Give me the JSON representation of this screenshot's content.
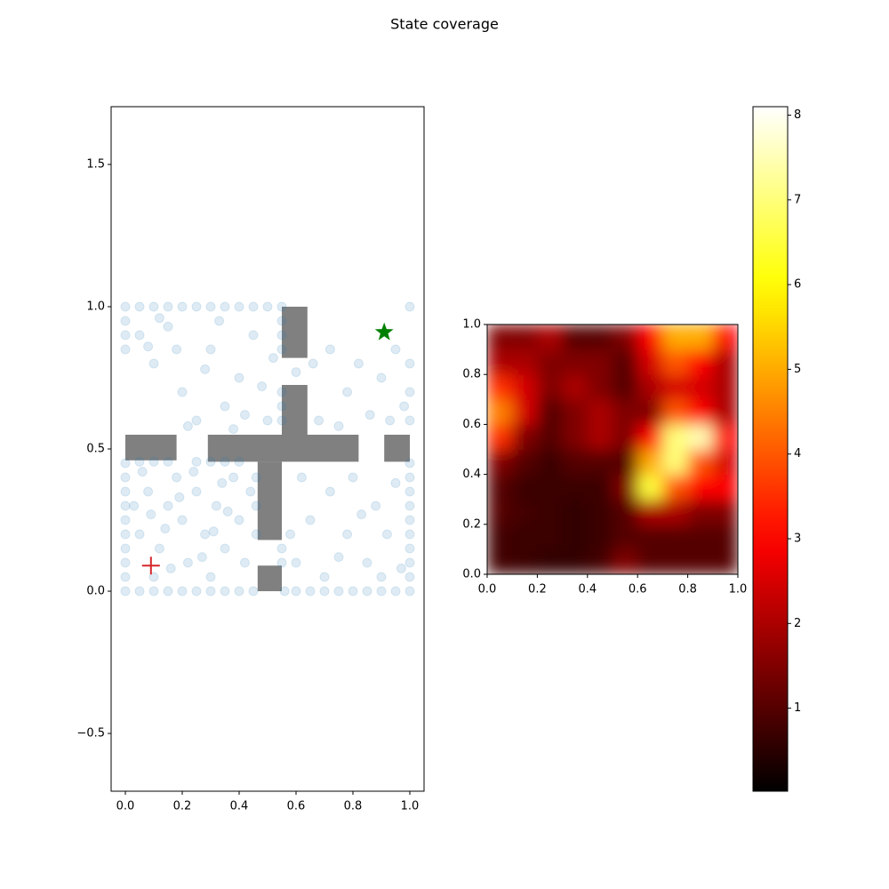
{
  "title": "State coverage",
  "chart_data": [
    {
      "type": "scatter",
      "xlim": [
        -0.05,
        1.05
      ],
      "ylim": [
        -0.703,
        1.703
      ],
      "xticks": [
        {
          "value": 0,
          "label": "0.0"
        },
        0.2,
        0.4,
        0.6,
        0.8,
        {
          "value": 1,
          "label": "1.0"
        }
      ],
      "yticks": [
        {
          "value": -0.5,
          "label": "−0.5"
        },
        {
          "value": 0,
          "label": "0.0"
        },
        0.5,
        {
          "value": 1,
          "label": "1.0"
        },
        1.5
      ],
      "color": "#1f77b4",
      "alpha": 0.15,
      "wall_color": "#808080",
      "walls": [
        [
          0.55,
          0.82,
          0.64,
          1.0
        ],
        [
          0.55,
          0.55,
          0.64,
          0.725
        ],
        [
          0.29,
          0.455,
          0.82,
          0.55
        ],
        [
          0.465,
          0.18,
          0.55,
          0.455
        ],
        [
          0.0,
          0.46,
          0.18,
          0.55
        ],
        [
          0.91,
          0.455,
          1.0,
          0.55
        ],
        [
          0.465,
          0.0,
          0.55,
          0.09
        ]
      ],
      "start": [
        0.09,
        0.09
      ],
      "start_color": "#d62728",
      "goal": [
        0.91,
        0.91
      ],
      "goal_color": "#008000",
      "x": [
        0,
        0.05,
        0.1,
        0.15,
        0.2,
        0.25,
        0.3,
        0.35,
        0.4,
        0.45,
        0.56,
        0.6,
        0.65,
        0.7,
        0.75,
        0.8,
        0.85,
        0.9,
        0.95,
        1,
        0,
        0,
        0,
        0,
        0,
        0,
        0,
        0,
        0,
        0,
        0,
        0,
        0,
        0.05,
        0.1,
        0.15,
        0.2,
        0.25,
        0.3,
        0.35,
        0.4,
        0.45,
        0.5,
        0.55,
        1,
        1,
        1,
        1,
        1,
        1,
        1,
        1,
        1,
        1,
        1,
        1,
        1,
        0.55,
        0.55,
        0.55,
        0.55,
        0.55,
        0.55,
        0.55,
        0.55,
        0.05,
        0.1,
        0.15,
        0.25,
        0.3,
        0.35,
        0.4,
        0.46,
        0.46,
        0.46,
        0.05,
        0.08,
        0.12,
        0.15,
        0.18,
        0.2,
        0.22,
        0.25,
        0.28,
        0.3,
        0.32,
        0.35,
        0.38,
        0.4,
        0.42,
        0.1,
        0.06,
        0.14,
        0.24,
        0.34,
        0.16,
        0.27,
        0.36,
        0.44,
        0.03,
        0.19,
        0.09,
        0.31,
        0.6,
        0.65,
        0.7,
        0.72,
        0.78,
        0.8,
        0.85,
        0.88,
        0.92,
        0.95,
        0.97,
        0.62,
        0.9,
        0.83,
        0.58,
        0.75,
        0.05,
        0.1,
        0.15,
        0.2,
        0.25,
        0.3,
        0.35,
        0.4,
        0.45,
        0.5,
        0.22,
        0.38,
        0.48,
        0.12,
        0.28,
        0.42,
        0.33,
        0.18,
        0.52,
        0.08,
        0.6,
        0.68,
        0.72,
        0.78,
        0.82,
        0.86,
        0.9,
        0.95,
        0.98,
        0.75,
        0.93,
        0.66
      ],
      "y": [
        0,
        0,
        0,
        0,
        0,
        0,
        0,
        0,
        0,
        0,
        0,
        0,
        0,
        0,
        0,
        0,
        0,
        0,
        0,
        0,
        0.05,
        0.1,
        0.15,
        0.2,
        0.25,
        0.3,
        0.35,
        0.4,
        0.45,
        0.85,
        0.9,
        0.95,
        1,
        1,
        1,
        1,
        1,
        1,
        1,
        1,
        1,
        1,
        1,
        1,
        0.05,
        0.1,
        0.15,
        0.2,
        0.25,
        0.3,
        0.35,
        0.4,
        0.45,
        0.6,
        0.7,
        0.8,
        1,
        0.85,
        0.9,
        0.95,
        0.6,
        0.65,
        0.7,
        0.1,
        0.15,
        0.455,
        0.455,
        0.455,
        0.455,
        0.455,
        0.455,
        0.455,
        0.2,
        0.3,
        0.4,
        0.2,
        0.35,
        0.15,
        0.3,
        0.4,
        0.25,
        0.1,
        0.35,
        0.2,
        0.05,
        0.3,
        0.15,
        0.4,
        0.25,
        0.1,
        0.05,
        0.42,
        0.22,
        0.42,
        0.38,
        0.08,
        0.12,
        0.28,
        0.35,
        0.3,
        0.33,
        0.27,
        0.21,
        0.1,
        0.25,
        0.05,
        0.35,
        0.2,
        0.4,
        0.1,
        0.3,
        0.2,
        0.38,
        0.08,
        0.4,
        0.05,
        0.27,
        0.2,
        0.12,
        0.9,
        0.8,
        0.93,
        0.7,
        0.6,
        0.85,
        0.65,
        0.75,
        0.9,
        0.6,
        0.58,
        0.57,
        0.72,
        0.96,
        0.78,
        0.62,
        0.95,
        0.85,
        0.82,
        0.86,
        0.77,
        0.6,
        0.85,
        0.7,
        0.8,
        0.62,
        0.75,
        0.85,
        0.65,
        0.58,
        0.6,
        0.8
      ]
    },
    {
      "type": "heatmap",
      "xlim": [
        0,
        1
      ],
      "ylim": [
        0,
        1
      ],
      "xticks": [
        {
          "value": 0,
          "label": "0.0"
        },
        0.2,
        0.4,
        0.6,
        0.8,
        {
          "value": 1,
          "label": "1.0"
        }
      ],
      "yticks": [
        {
          "value": 0,
          "label": "0.0"
        },
        0.2,
        0.4,
        0.6,
        0.8,
        {
          "value": 1,
          "label": "1.0"
        }
      ],
      "cmap": "hot",
      "clim": [
        0.02,
        8.1
      ],
      "cticks": [
        1,
        2,
        3,
        4,
        5,
        6,
        7,
        8
      ],
      "z": [
        [
          0.8,
          0.7,
          0.6,
          0.6,
          0.8,
          1.5,
          1,
          1,
          1,
          1
        ],
        [
          0.8,
          0.7,
          0.7,
          0.6,
          0.7,
          1,
          1,
          1,
          1,
          1
        ],
        [
          1,
          0.8,
          0.7,
          0.6,
          0.7,
          1,
          2,
          2,
          1.5,
          1.5
        ],
        [
          1,
          0.7,
          0.7,
          0.7,
          0.7,
          1.5,
          6.5,
          4,
          3,
          3
        ],
        [
          1.5,
          1,
          0.7,
          1,
          1,
          1,
          5,
          7,
          4,
          2.5
        ],
        [
          3.5,
          1.5,
          1,
          1.5,
          2,
          1.5,
          3,
          7,
          7.5,
          3
        ],
        [
          4.5,
          2.5,
          1,
          1.5,
          2,
          1.5,
          1.5,
          4,
          3,
          2
        ],
        [
          3.5,
          2.5,
          1.5,
          2,
          1.5,
          1,
          2,
          2.5,
          2.5,
          2
        ],
        [
          2,
          2,
          1.5,
          1.5,
          1.5,
          1,
          2.5,
          4,
          3,
          2
        ],
        [
          1.5,
          1.5,
          2,
          1,
          1,
          1.5,
          3,
          5,
          5,
          3
        ]
      ]
    }
  ]
}
